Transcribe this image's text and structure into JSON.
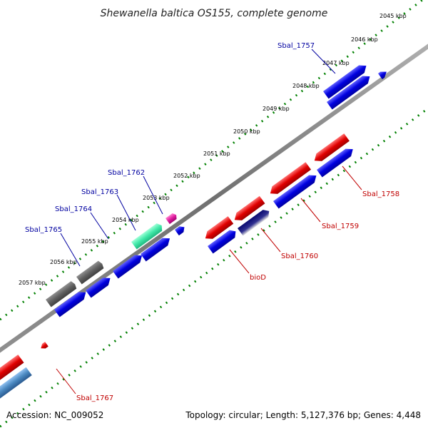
{
  "title": "Shewanella baltica OS155, complete genome",
  "footer": {
    "accession": "Accession: NC_009052",
    "summary": "Topology: circular; Length: 5,127,376 bp; Genes: 4,448"
  },
  "ticks": [
    "2045 kbp",
    "2046 kbp",
    "2047 kbp",
    "2048 kbp",
    "2049 kbp",
    "2050 kbp",
    "2051 kbp",
    "2052 kbp",
    "2053 kbp",
    "2054 kbp",
    "2055 kbp",
    "2056 kbp",
    "2057 kbp"
  ],
  "gene_labels_outer": [
    "Sbal_1757",
    "Sbal_1762",
    "Sbal_1763",
    "Sbal_1764",
    "Sbal_1765"
  ],
  "gene_labels_inner": [
    "Sbal_1758",
    "Sbal_1759",
    "Sbal_1760",
    "bioD",
    "Sbal_1767"
  ],
  "colors": {
    "forward_cds": "#0000e0",
    "reverse_cds": "#e00000",
    "gray_feature": "#606060",
    "green_feature": "#40e8a8",
    "magenta_feature": "#e020a0",
    "steel_feature": "#4a88c0",
    "navy_feature": "#0a0a70",
    "tick_dots": "#008000",
    "backbone": "#808080",
    "outer_label": "#0000a0",
    "inner_label": "#c00000"
  }
}
